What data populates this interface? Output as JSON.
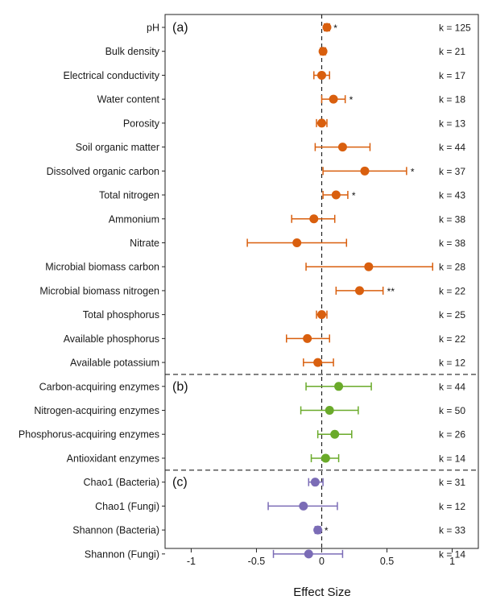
{
  "chart_data": {
    "type": "forest",
    "xlabel": "Effect Size",
    "xlim": [
      -1.2,
      1.2
    ],
    "xticks": [
      -1,
      -0.5,
      0,
      0.5,
      1
    ],
    "xtick_labels": [
      "-1",
      "-0.5",
      "0",
      "0.5",
      "1"
    ],
    "reference_line": 0,
    "colors": {
      "a": "#d95f0e",
      "b": "#6aaa2a",
      "c": "#7b6cb6"
    },
    "panels": [
      {
        "label": "(a)",
        "group": "a",
        "rows": [
          {
            "name": "pH",
            "est": 0.04,
            "lo": 0.02,
            "hi": 0.06,
            "k": "k = 125",
            "sig": "*"
          },
          {
            "name": "Bulk density",
            "est": 0.01,
            "lo": -0.01,
            "hi": 0.03,
            "k": "k = 21",
            "sig": ""
          },
          {
            "name": "Electrical conductivity",
            "est": 0.0,
            "lo": -0.06,
            "hi": 0.06,
            "k": "k = 17",
            "sig": ""
          },
          {
            "name": "Water content",
            "est": 0.09,
            "lo": 0.0,
            "hi": 0.18,
            "k": "k = 18",
            "sig": "*"
          },
          {
            "name": "Porosity",
            "est": 0.0,
            "lo": -0.04,
            "hi": 0.04,
            "k": "k = 13",
            "sig": ""
          },
          {
            "name": "Soil organic matter",
            "est": 0.16,
            "lo": -0.05,
            "hi": 0.37,
            "k": "k = 44",
            "sig": ""
          },
          {
            "name": "Dissolved organic carbon",
            "est": 0.33,
            "lo": 0.01,
            "hi": 0.65,
            "k": "k = 37",
            "sig": "*"
          },
          {
            "name": "Total nitrogen",
            "est": 0.11,
            "lo": 0.01,
            "hi": 0.2,
            "k": "k = 43",
            "sig": "*"
          },
          {
            "name": "Ammonium",
            "est": -0.06,
            "lo": -0.23,
            "hi": 0.1,
            "k": "k = 38",
            "sig": ""
          },
          {
            "name": "Nitrate",
            "est": -0.19,
            "lo": -0.57,
            "hi": 0.19,
            "k": "k = 38",
            "sig": ""
          },
          {
            "name": "Microbial biomass carbon",
            "est": 0.36,
            "lo": -0.12,
            "hi": 0.85,
            "k": "k = 28",
            "sig": ""
          },
          {
            "name": "Microbial biomass nitrogen",
            "est": 0.29,
            "lo": 0.11,
            "hi": 0.47,
            "k": "k = 22",
            "sig": "**"
          },
          {
            "name": "Total phosphorus",
            "est": 0.0,
            "lo": -0.04,
            "hi": 0.04,
            "k": "k = 25",
            "sig": ""
          },
          {
            "name": "Available phosphorus",
            "est": -0.11,
            "lo": -0.27,
            "hi": 0.06,
            "k": "k = 22",
            "sig": ""
          },
          {
            "name": "Available potassium",
            "est": -0.03,
            "lo": -0.14,
            "hi": 0.09,
            "k": "k = 12",
            "sig": ""
          }
        ]
      },
      {
        "label": "(b)",
        "group": "b",
        "rows": [
          {
            "name": "Carbon-acquiring enzymes",
            "est": 0.13,
            "lo": -0.12,
            "hi": 0.38,
            "k": "k = 44",
            "sig": ""
          },
          {
            "name": "Nitrogen-acquiring enzymes",
            "est": 0.06,
            "lo": -0.16,
            "hi": 0.28,
            "k": "k = 50",
            "sig": ""
          },
          {
            "name": "Phosphorus-acquiring enzymes",
            "est": 0.1,
            "lo": -0.03,
            "hi": 0.23,
            "k": "k = 26",
            "sig": ""
          },
          {
            "name": "Antioxidant enzymes",
            "est": 0.03,
            "lo": -0.08,
            "hi": 0.13,
            "k": "k = 14",
            "sig": ""
          }
        ]
      },
      {
        "label": "(c)",
        "group": "c",
        "rows": [
          {
            "name": "Chao1 (Bacteria)",
            "est": -0.05,
            "lo": -0.1,
            "hi": 0.01,
            "k": "k = 31",
            "sig": ""
          },
          {
            "name": "Chao1 (Fungi)",
            "est": -0.14,
            "lo": -0.41,
            "hi": 0.12,
            "k": "k = 12",
            "sig": ""
          },
          {
            "name": "Shannon (Bacteria)",
            "est": -0.03,
            "lo": -0.05,
            "hi": -0.01,
            "k": "k = 33",
            "sig": "*"
          },
          {
            "name": "Shannon (Fungi)",
            "est": -0.1,
            "lo": -0.37,
            "hi": 0.16,
            "k": "k = 14",
            "sig": ""
          }
        ]
      }
    ]
  }
}
